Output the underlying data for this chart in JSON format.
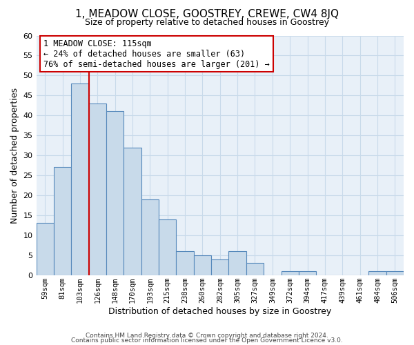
{
  "title": "1, MEADOW CLOSE, GOOSTREY, CREWE, CW4 8JQ",
  "subtitle": "Size of property relative to detached houses in Goostrey",
  "xlabel": "Distribution of detached houses by size in Goostrey",
  "ylabel": "Number of detached properties",
  "bar_color": "#c8daea",
  "bar_edge_color": "#5588bb",
  "grid_color": "#c8daea",
  "background_color": "#e8f0f8",
  "categories": [
    "59sqm",
    "81sqm",
    "103sqm",
    "126sqm",
    "148sqm",
    "170sqm",
    "193sqm",
    "215sqm",
    "238sqm",
    "260sqm",
    "282sqm",
    "305sqm",
    "327sqm",
    "349sqm",
    "372sqm",
    "394sqm",
    "417sqm",
    "439sqm",
    "461sqm",
    "484sqm",
    "506sqm"
  ],
  "values": [
    13,
    27,
    48,
    43,
    41,
    32,
    19,
    14,
    6,
    5,
    4,
    6,
    3,
    0,
    1,
    1,
    0,
    0,
    0,
    1,
    1
  ],
  "ylim": [
    0,
    60
  ],
  "yticks": [
    0,
    5,
    10,
    15,
    20,
    25,
    30,
    35,
    40,
    45,
    50,
    55,
    60
  ],
  "marker_color": "#cc0000",
  "annotation_lines": [
    "1 MEADOW CLOSE: 115sqm",
    "← 24% of detached houses are smaller (63)",
    "76% of semi-detached houses are larger (201) →"
  ],
  "annotation_box_color": "#ffffff",
  "annotation_box_edge": "#cc0000",
  "footer1": "Contains HM Land Registry data © Crown copyright and database right 2024.",
  "footer2": "Contains public sector information licensed under the Open Government Licence v3.0."
}
